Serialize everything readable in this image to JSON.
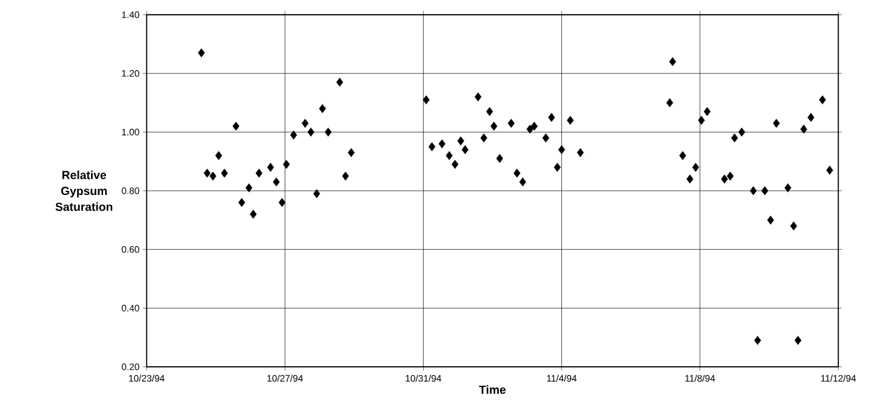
{
  "chart_data": {
    "type": "scatter",
    "xlabel": "Time",
    "ylabel": "Relative Gypsum Saturation",
    "xlim": [
      "1994-10-23",
      "1994-11-12"
    ],
    "xticks": [
      {
        "value": "1994-10-23",
        "label": "10/23/94"
      },
      {
        "value": "1994-10-27",
        "label": "10/27/94"
      },
      {
        "value": "1994-10-31",
        "label": "10/31/94"
      },
      {
        "value": "1994-11-04",
        "label": "11/4/94"
      },
      {
        "value": "1994-11-08",
        "label": "11/8/94"
      },
      {
        "value": "1994-11-12",
        "label": "11/12/94"
      }
    ],
    "ylim": [
      0.2,
      1.4
    ],
    "yticks": [
      {
        "value": 0.2,
        "label": "0.20"
      },
      {
        "value": 0.4,
        "label": "0.40"
      },
      {
        "value": 0.6,
        "label": "0.60"
      },
      {
        "value": 0.8,
        "label": "0.80"
      },
      {
        "value": 1.0,
        "label": "1.00"
      },
      {
        "value": 1.2,
        "label": "1.20"
      },
      {
        "value": 1.4,
        "label": "1.40"
      }
    ],
    "grid": true,
    "marker": "diamond",
    "legend": false,
    "series": [
      {
        "color": "#000000",
        "x": [
          "1994-10-24T14:00",
          "1994-10-24T18:00",
          "1994-10-24T22:00",
          "1994-10-25T02:00",
          "1994-10-25T06:00",
          "1994-10-25T14:00",
          "1994-10-25T18:00",
          "1994-10-25T23:00",
          "1994-10-26T02:00",
          "1994-10-26T06:00",
          "1994-10-26T14:00",
          "1994-10-26T18:00",
          "1994-10-26T22:00",
          "1994-10-27T01:00",
          "1994-10-27T06:00",
          "1994-10-27T14:00",
          "1994-10-27T18:00",
          "1994-10-27T22:00",
          "1994-10-28T02:00",
          "1994-10-28T06:00",
          "1994-10-28T14:00",
          "1994-10-28T18:00",
          "1994-10-28T22:00",
          "1994-10-31T02:00",
          "1994-10-31T06:00",
          "1994-10-31T13:00",
          "1994-10-31T18:00",
          "1994-10-31T22:00",
          "1994-11-01T02:00",
          "1994-11-01T05:00",
          "1994-11-01T14:00",
          "1994-11-01T18:00",
          "1994-11-01T22:00",
          "1994-11-02T01:00",
          "1994-11-02T05:00",
          "1994-11-02T13:00",
          "1994-11-02T17:00",
          "1994-11-02T21:00",
          "1994-11-03T02:00",
          "1994-11-03T05:00",
          "1994-11-03T13:00",
          "1994-11-03T17:00",
          "1994-11-03T21:00",
          "1994-11-04T00:00",
          "1994-11-04T06:00",
          "1994-11-04T13:00",
          "1994-11-07T03:00",
          "1994-11-07T05:00",
          "1994-11-07T12:00",
          "1994-11-07T17:00",
          "1994-11-07T21:00",
          "1994-11-08T01:00",
          "1994-11-08T05:00",
          "1994-11-08T17:00",
          "1994-11-08T21:00",
          "1994-11-09T00:00",
          "1994-11-09T05:00",
          "1994-11-09T13:00",
          "1994-11-09T16:00",
          "1994-11-09T21:00",
          "1994-11-10T01:00",
          "1994-11-10T05:00",
          "1994-11-10T13:00",
          "1994-11-10T17:00",
          "1994-11-10T20:00",
          "1994-11-11T00:00",
          "1994-11-11T05:00",
          "1994-11-11T13:00",
          "1994-11-11T18:00"
        ],
        "values": [
          1.27,
          0.86,
          0.85,
          0.92,
          0.86,
          1.02,
          0.76,
          0.81,
          0.72,
          0.86,
          0.88,
          0.83,
          0.76,
          0.89,
          0.99,
          1.03,
          1.0,
          0.79,
          1.08,
          1.0,
          1.17,
          0.85,
          0.93,
          1.11,
          0.95,
          0.96,
          0.92,
          0.89,
          0.97,
          0.94,
          1.12,
          0.98,
          1.07,
          1.02,
          0.91,
          1.03,
          0.86,
          0.83,
          1.01,
          1.02,
          0.98,
          1.05,
          0.88,
          0.94,
          1.04,
          0.93,
          1.1,
          1.24,
          0.92,
          0.84,
          0.88,
          1.04,
          1.07,
          0.84,
          0.85,
          0.98,
          1.0,
          0.8,
          0.29,
          0.8,
          0.7,
          1.03,
          0.81,
          0.68,
          0.29,
          1.01,
          1.05,
          1.11,
          0.87
        ]
      }
    ]
  }
}
